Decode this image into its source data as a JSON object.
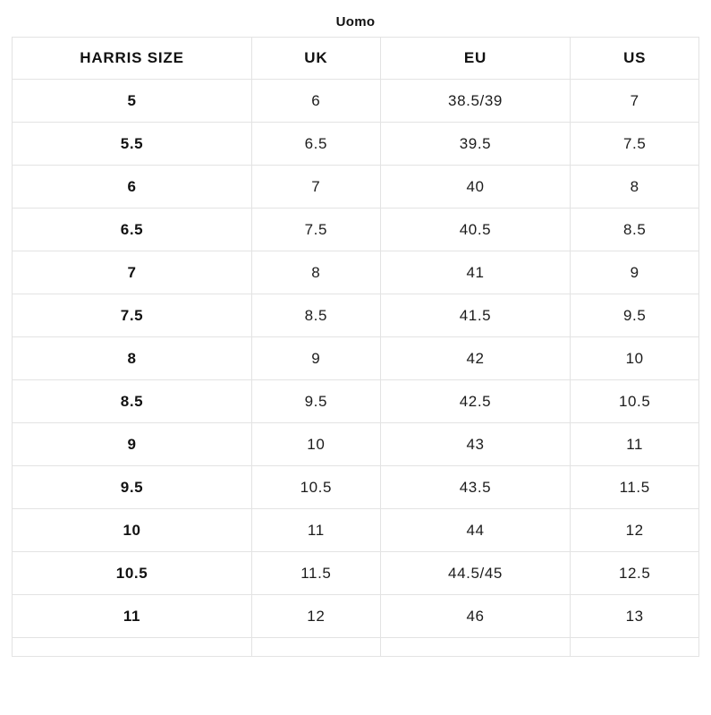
{
  "page": {
    "title": "Uomo"
  },
  "chart_data": {
    "type": "table",
    "title": "Uomo",
    "columns": [
      "HARRIS SIZE",
      "UK",
      "EU",
      "US"
    ],
    "rows": [
      [
        "5",
        "6",
        "38.5/39",
        "7"
      ],
      [
        "5.5",
        "6.5",
        "39.5",
        "7.5"
      ],
      [
        "6",
        "7",
        "40",
        "8"
      ],
      [
        "6.5",
        "7.5",
        "40.5",
        "8.5"
      ],
      [
        "7",
        "8",
        "41",
        "9"
      ],
      [
        "7.5",
        "8.5",
        "41.5",
        "9.5"
      ],
      [
        "8",
        "9",
        "42",
        "10"
      ],
      [
        "8.5",
        "9.5",
        "42.5",
        "10.5"
      ],
      [
        "9",
        "10",
        "43",
        "11"
      ],
      [
        "9.5",
        "10.5",
        "43.5",
        "11.5"
      ],
      [
        "10",
        "11",
        "44",
        "12"
      ],
      [
        "10.5",
        "11.5",
        "44.5/45",
        "12.5"
      ],
      [
        "11",
        "12",
        "46",
        "13"
      ]
    ],
    "trailing_empty_row": true,
    "layout_hints": {
      "first_column_bold": true,
      "all_cells_centered": true,
      "grid": "full-borders"
    }
  },
  "colors": {
    "border": "#e3e3e3",
    "header_text": "#111111",
    "cell_text": "#1c1c1c",
    "background": "#ffffff"
  }
}
